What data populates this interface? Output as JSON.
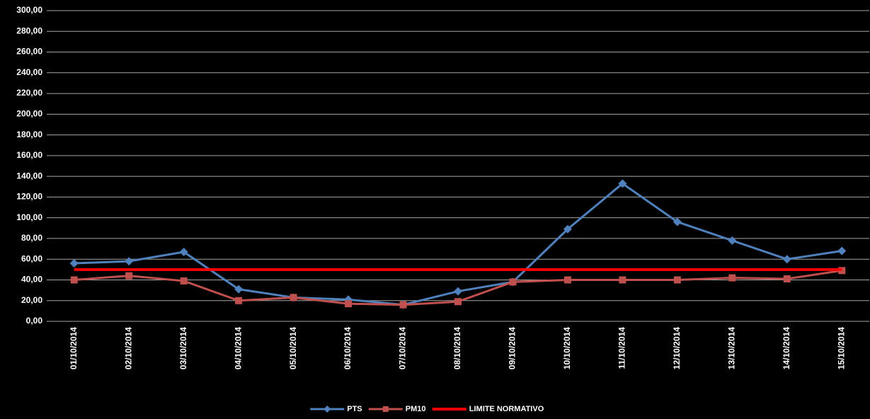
{
  "chart_data": {
    "type": "line",
    "categories": [
      "01/10/2014",
      "02/10/2014",
      "03/10/2014",
      "04/10/2014",
      "05/10/2014",
      "06/10/2014",
      "07/10/2014",
      "08/10/2014",
      "09/10/2014",
      "10/10/2014",
      "11/10/2014",
      "12/10/2014",
      "13/10/2014",
      "14/10/2014",
      "15/10/2014"
    ],
    "series": [
      {
        "name": "PTS",
        "color": "#4f81bd",
        "marker": "diamond",
        "values": [
          56,
          58,
          67,
          31,
          23,
          21,
          16,
          29,
          38,
          89,
          133,
          96,
          78,
          60,
          68
        ]
      },
      {
        "name": "PM10",
        "color": "#c0504d",
        "marker": "square",
        "values": [
          40,
          44,
          39,
          20,
          23,
          17,
          16,
          19,
          38,
          40,
          40,
          40,
          42,
          41,
          49
        ]
      },
      {
        "name": "LIMITE NORMATIVO",
        "color": "#ff0000",
        "values": [
          50,
          50,
          50,
          50,
          50,
          50,
          50,
          50,
          50,
          50,
          50,
          50,
          50,
          50,
          50
        ]
      }
    ],
    "ylim": [
      0,
      300
    ],
    "yticks": [
      {
        "value": 0,
        "label": "0,00"
      },
      {
        "value": 20,
        "label": "20,00"
      },
      {
        "value": 40,
        "label": "40,00"
      },
      {
        "value": 60,
        "label": "60,00"
      },
      {
        "value": 80,
        "label": "80,00"
      },
      {
        "value": 100,
        "label": "100,00"
      },
      {
        "value": 120,
        "label": "120,00"
      },
      {
        "value": 140,
        "label": "140,00"
      },
      {
        "value": 160,
        "label": "160,00"
      },
      {
        "value": 180,
        "label": "180,00"
      },
      {
        "value": 200,
        "label": "200,00"
      },
      {
        "value": 220,
        "label": "220,00"
      },
      {
        "value": 240,
        "label": "240,00"
      },
      {
        "value": 260,
        "label": "260,00"
      },
      {
        "value": 280,
        "label": "280,00"
      },
      {
        "value": 300,
        "label": "300,00"
      }
    ],
    "grid": true,
    "legend": "bottom"
  }
}
